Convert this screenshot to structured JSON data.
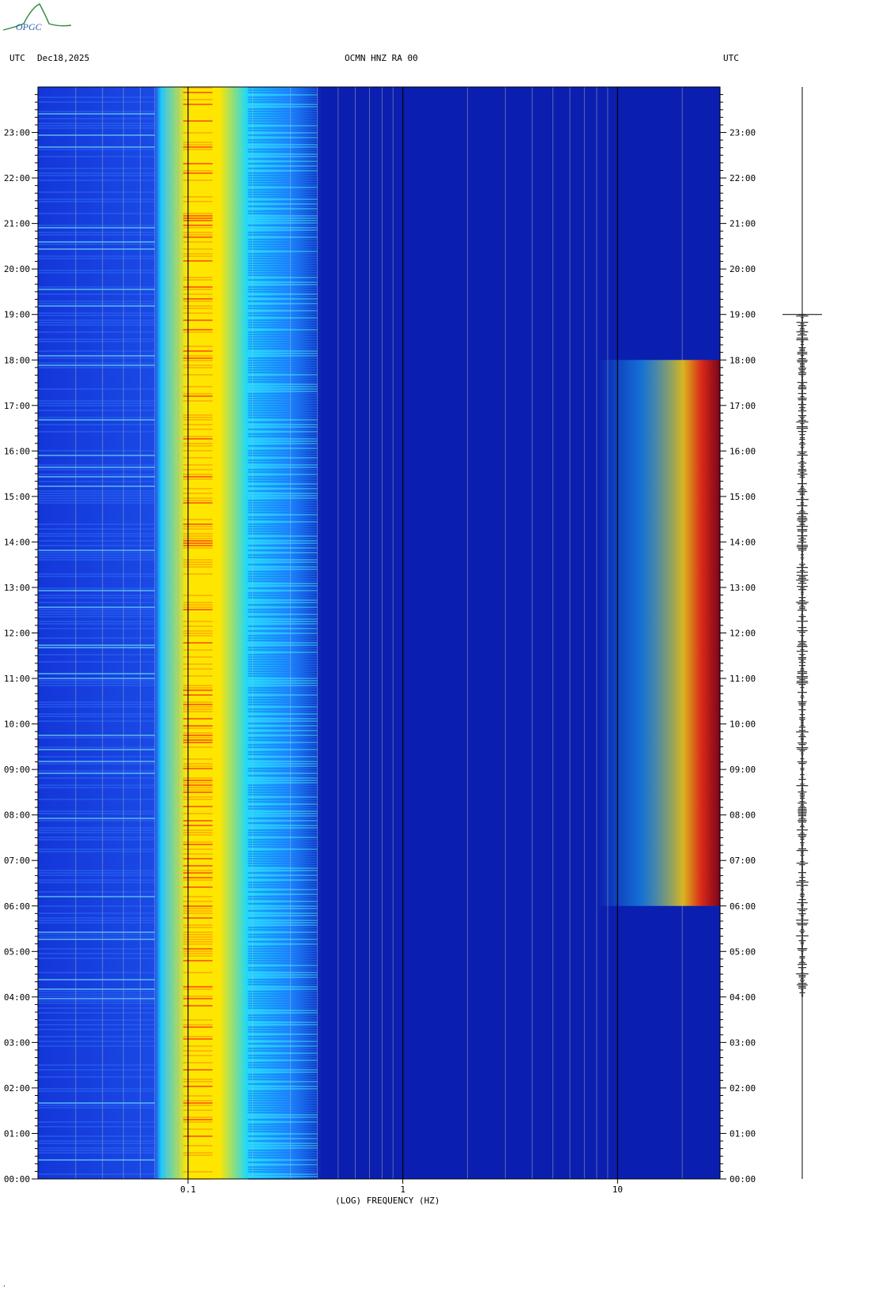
{
  "header": {
    "utc_left": "UTC",
    "date": "Dec18,2025",
    "station": "OCMN HNZ RA 00",
    "utc_right": "UTC"
  },
  "logo": {
    "text": "OPGC"
  },
  "chart_data": {
    "type": "heatmap",
    "title": "OCMN HNZ RA 00",
    "xlabel": "(LOG) FREQUENCY (HZ)",
    "x_scale": "log",
    "xlim": [
      0.02,
      30
    ],
    "x_ticks": [
      {
        "value": 0.1,
        "label": "0.1"
      },
      {
        "value": 1,
        "label": "1"
      },
      {
        "value": 10,
        "label": "10"
      }
    ],
    "y_ticks": [
      "00:00",
      "01:00",
      "02:00",
      "03:00",
      "04:00",
      "05:00",
      "06:00",
      "07:00",
      "08:00",
      "09:00",
      "10:00",
      "11:00",
      "12:00",
      "13:00",
      "14:00",
      "15:00",
      "16:00",
      "17:00",
      "18:00",
      "19:00",
      "20:00",
      "21:00",
      "22:00",
      "23:00"
    ],
    "ylim": [
      "00:00",
      "24:00"
    ],
    "colors": {
      "low": "#0a1fb0",
      "mid": "#18d8ff",
      "high": "#ffe600",
      "peak": "#8b0000"
    },
    "spectral_bands": [
      {
        "from_hz": 0.07,
        "to_hz": 0.2,
        "level": "high"
      },
      {
        "from_hz": 0.2,
        "to_hz": 0.4,
        "level": "mid"
      },
      {
        "from_hz": 10,
        "to_hz": 30,
        "level": "high",
        "active_hours": [
          6,
          18
        ]
      }
    ],
    "seismogram": {
      "active_hours": [
        4,
        19
      ]
    }
  },
  "footer": {
    "mark": "."
  }
}
